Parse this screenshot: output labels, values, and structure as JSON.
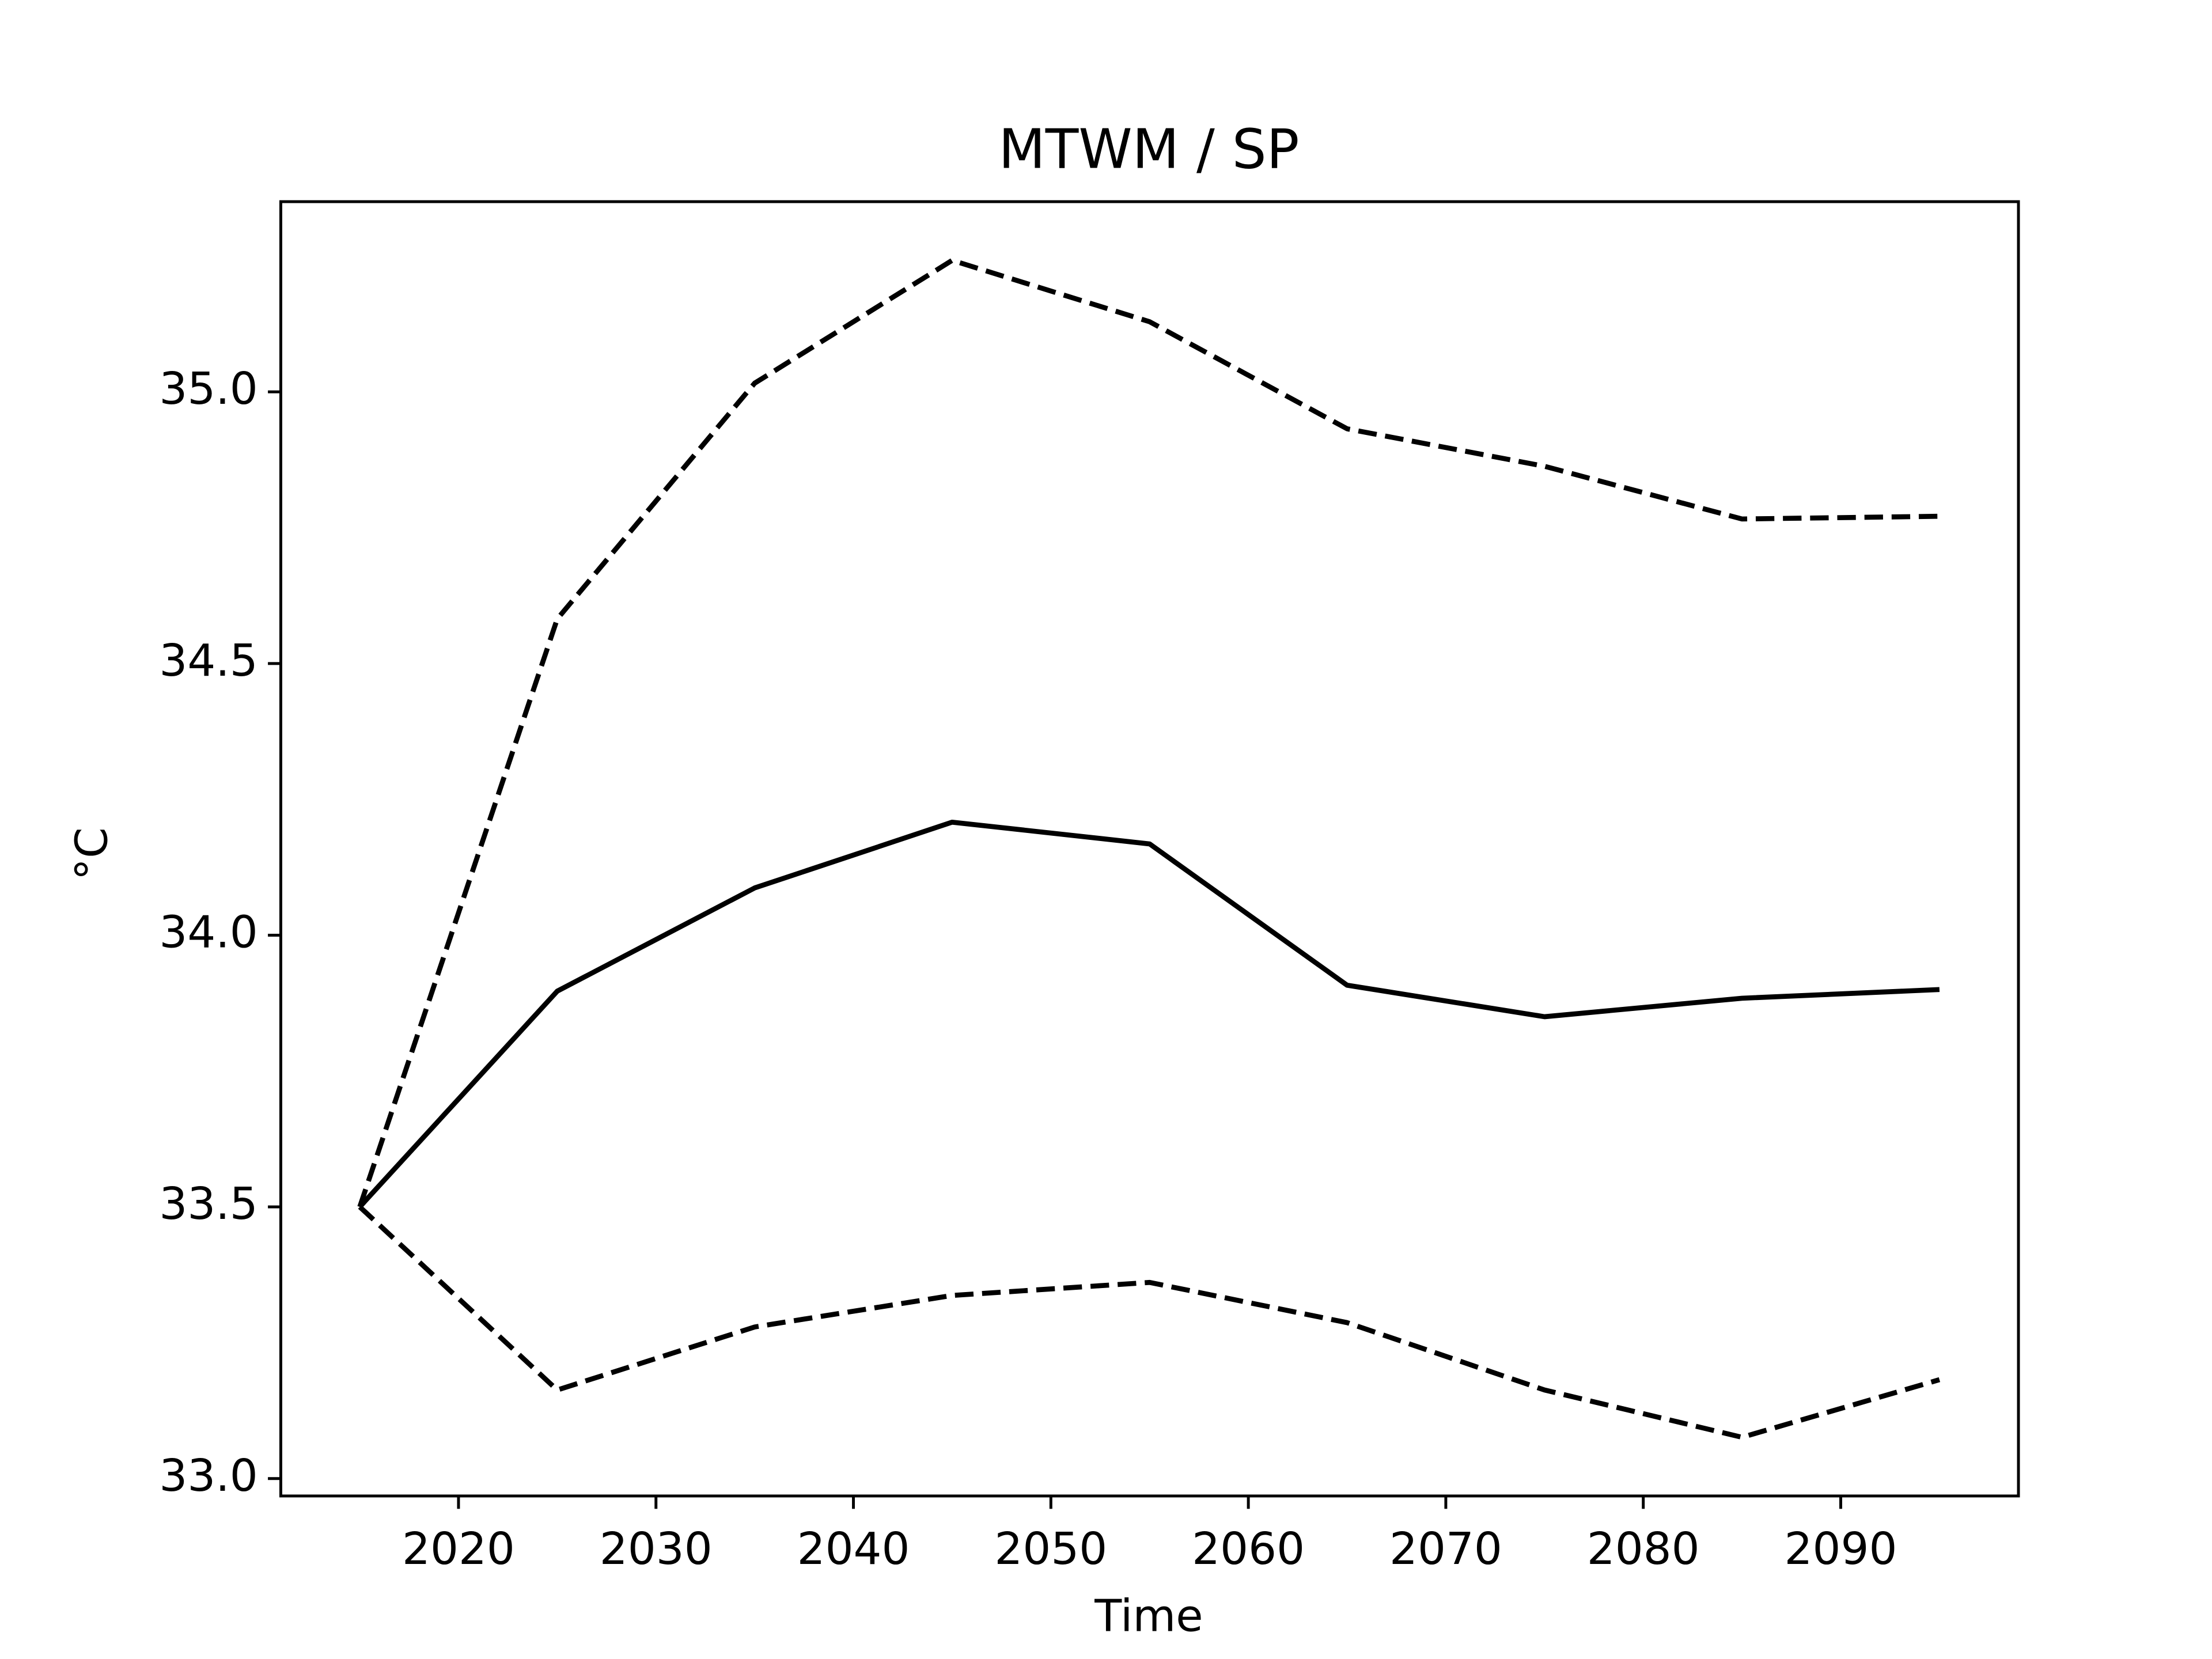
{
  "chart_data": {
    "type": "line",
    "title": "MTWM / SP",
    "xlabel": "Time",
    "ylabel": "°C",
    "x": [
      2015,
      2025,
      2035,
      2045,
      2055,
      2065,
      2075,
      2085,
      2095
    ],
    "series": [
      {
        "color": "#000000",
        "style": "solid",
        "values": [
          33.5,
          33.897,
          34.087,
          34.208,
          34.168,
          33.908,
          33.85,
          33.884,
          33.9
        ]
      },
      {
        "color": "#000000",
        "style": "dashed",
        "values": [
          33.5,
          34.582,
          35.016,
          35.242,
          35.129,
          34.932,
          34.863,
          34.766,
          34.771
        ]
      },
      {
        "color": "#000000",
        "style": "dashed",
        "values": [
          33.5,
          33.163,
          33.279,
          33.337,
          33.361,
          33.287,
          33.163,
          33.076,
          33.182
        ]
      }
    ],
    "xlim": [
      2011,
      2099
    ],
    "xticks": [
      2020,
      2030,
      2040,
      2050,
      2060,
      2070,
      2080,
      2090
    ],
    "ylim": [
      32.968,
      35.35
    ],
    "yticks": [
      {
        "value": 33,
        "label": "33.0"
      },
      33.5,
      {
        "value": 34,
        "label": "34.0"
      },
      34.5,
      {
        "value": 35,
        "label": "35.0"
      }
    ],
    "grid": false
  }
}
